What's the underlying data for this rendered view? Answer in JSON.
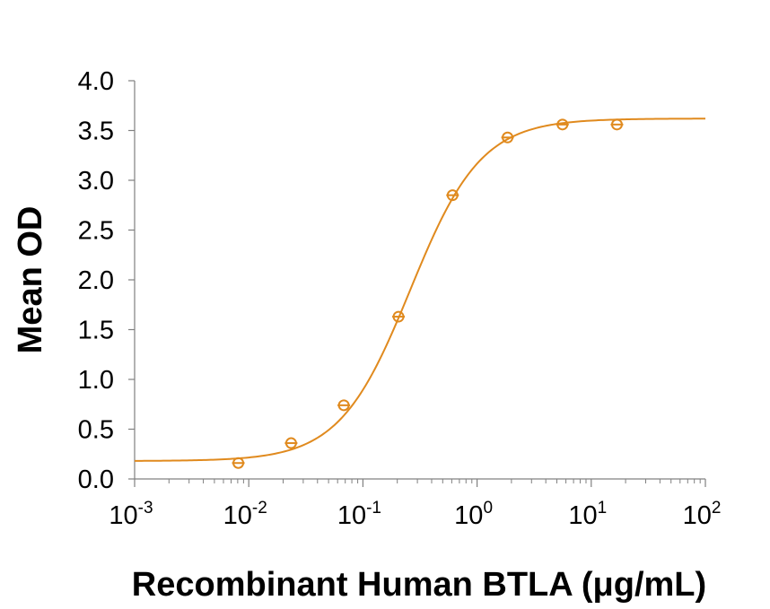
{
  "chart_data": {
    "type": "scatter",
    "title": "",
    "xlabel": "Recombinant Human BTLA (μg/mL)",
    "ylabel": "Mean OD",
    "x_scale": "log",
    "xlim": [
      0.001,
      100
    ],
    "ylim": [
      0,
      4
    ],
    "x_ticks": [
      {
        "base": "10",
        "exp": "-3",
        "value": 0.001
      },
      {
        "base": "10",
        "exp": "-2",
        "value": 0.01
      },
      {
        "base": "10",
        "exp": "-1",
        "value": 0.1
      },
      {
        "base": "10",
        "exp": "0",
        "value": 1
      },
      {
        "base": "10",
        "exp": "1",
        "value": 10
      },
      {
        "base": "10",
        "exp": "2",
        "value": 100
      }
    ],
    "y_ticks": [
      "0.0",
      "0.5",
      "1.0",
      "1.5",
      "2.0",
      "2.5",
      "3.0",
      "3.5",
      "4.0"
    ],
    "grid": false,
    "legend": "none",
    "color": "#E08A1E",
    "series": [
      {
        "points": [
          {
            "x": 0.0081,
            "y": 0.16
          },
          {
            "x": 0.0235,
            "y": 0.36
          },
          {
            "x": 0.068,
            "y": 0.74
          },
          {
            "x": 0.205,
            "y": 1.63
          },
          {
            "x": 0.61,
            "y": 2.85
          },
          {
            "x": 1.85,
            "y": 3.43
          },
          {
            "x": 5.6,
            "y": 3.56
          },
          {
            "x": 16.8,
            "y": 3.56
          }
        ]
      }
    ],
    "fit": {
      "model": "4PL",
      "bottom": 0.18,
      "top": 3.62,
      "ec50": 0.26,
      "hill": 1.4
    }
  }
}
